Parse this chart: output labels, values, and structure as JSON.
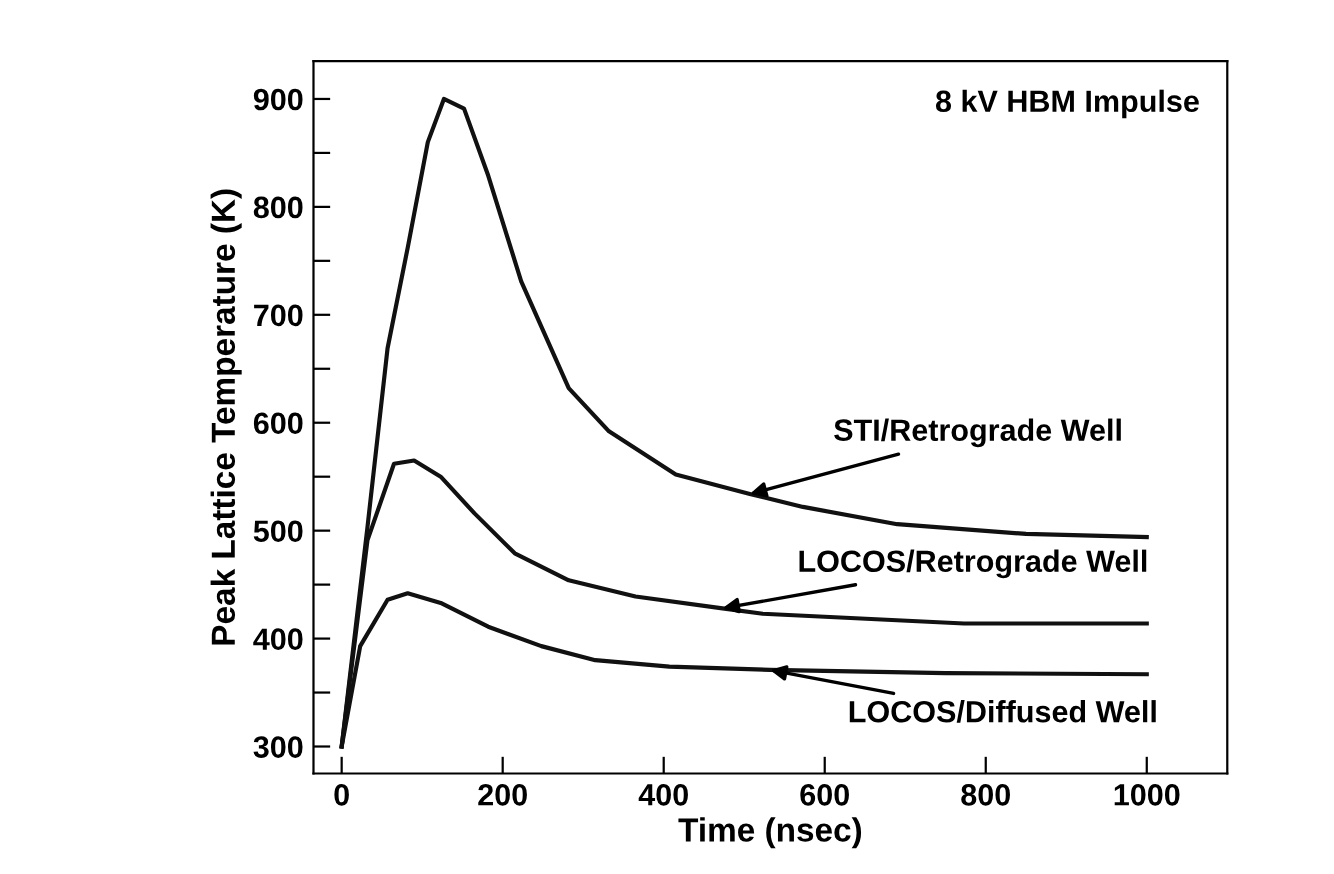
{
  "chart_data": {
    "type": "line",
    "title": "8 kV HBM Impulse",
    "xlabel": "Time (nsec)",
    "ylabel": "Peak Lattice Temperature (K)",
    "series": [
      {
        "color": "#111111",
        "x": [
          0,
          32,
          57,
          82,
          107,
          127,
          152,
          182,
          223,
          282,
          332,
          415,
          507,
          573,
          690,
          850,
          1000
        ],
        "values": [
          300,
          503,
          669,
          762,
          860,
          900,
          891,
          829,
          731,
          632,
          592,
          552,
          534,
          522,
          506,
          497,
          494
        ]
      },
      {
        "color": "#111111",
        "x": [
          0,
          32,
          65,
          90,
          123,
          165,
          215,
          282,
          365,
          473,
          523,
          773,
          1000
        ],
        "values": [
          300,
          491,
          562,
          565,
          550,
          516,
          479,
          454,
          439,
          428,
          423,
          414,
          414
        ]
      },
      {
        "color": "#111111",
        "x": [
          0,
          23,
          57,
          82,
          123,
          182,
          248,
          315,
          407,
          532,
          750,
          1000
        ],
        "values": [
          300,
          393,
          436,
          442,
          433,
          411,
          393,
          380,
          374,
          371,
          368,
          367
        ]
      }
    ],
    "annotations": [
      {
        "text": "STI/Retrograde Well",
        "x": 507,
        "y": 534
      },
      {
        "text": "LOCOS/Retrograde Well",
        "x": 473,
        "y": 428
      },
      {
        "text": "LOCOS/Diffused Well",
        "x": 532,
        "y": 371
      }
    ],
    "xlim": [
      -35,
      1100
    ],
    "ylim": [
      275,
      935
    ],
    "xticks": [
      0,
      200,
      400,
      600,
      800,
      1000
    ],
    "yticks": [
      300,
      {
        "value": 350,
        "label": null
      },
      400,
      {
        "value": 450,
        "label": null
      },
      500,
      {
        "value": 550,
        "label": null
      },
      600,
      {
        "value": 650,
        "label": null
      },
      700,
      {
        "value": 750,
        "label": null
      },
      800,
      {
        "value": 850,
        "label": null
      },
      900
    ],
    "grid": false,
    "legend": false,
    "marker": "none",
    "line_style": "solid"
  }
}
